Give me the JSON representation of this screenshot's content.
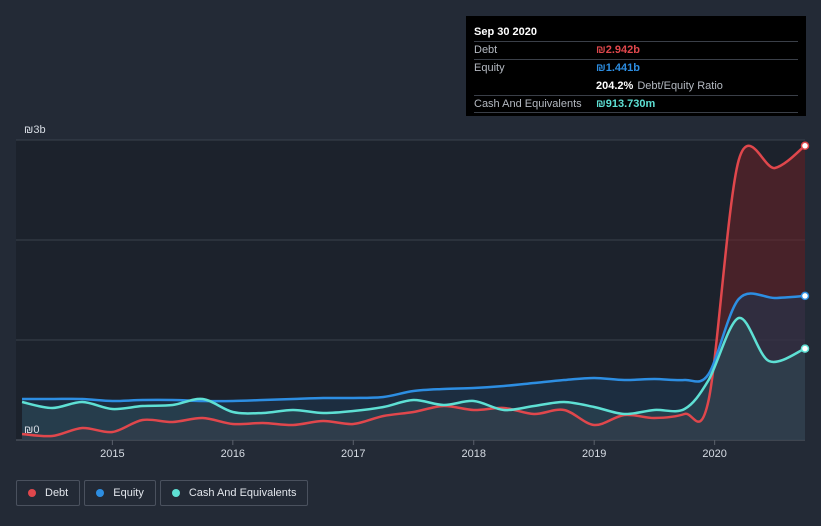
{
  "chart_data": {
    "type": "area",
    "y_labels": {
      "top": "₪3b",
      "bottom": "₪0"
    },
    "ylim": [
      0,
      3
    ],
    "xlim": [
      2014.2,
      2020.75
    ],
    "x_ticks": [
      2015,
      2016,
      2017,
      2018,
      2019,
      2020
    ],
    "x_tick_labels": [
      "2015",
      "2016",
      "2017",
      "2018",
      "2019",
      "2020"
    ],
    "y_unit": "₪b",
    "series": [
      {
        "name": "Debt",
        "color": "#e0474c",
        "fill": "#6e2228",
        "points": [
          [
            2014.25,
            0.06
          ],
          [
            2014.5,
            0.04
          ],
          [
            2014.75,
            0.12
          ],
          [
            2015.0,
            0.08
          ],
          [
            2015.25,
            0.2
          ],
          [
            2015.5,
            0.18
          ],
          [
            2015.75,
            0.22
          ],
          [
            2016.0,
            0.16
          ],
          [
            2016.25,
            0.17
          ],
          [
            2016.5,
            0.15
          ],
          [
            2016.75,
            0.19
          ],
          [
            2017.0,
            0.16
          ],
          [
            2017.25,
            0.24
          ],
          [
            2017.5,
            0.28
          ],
          [
            2017.75,
            0.34
          ],
          [
            2018.0,
            0.3
          ],
          [
            2018.25,
            0.32
          ],
          [
            2018.5,
            0.26
          ],
          [
            2018.75,
            0.3
          ],
          [
            2019.0,
            0.15
          ],
          [
            2019.25,
            0.25
          ],
          [
            2019.5,
            0.22
          ],
          [
            2019.75,
            0.26
          ],
          [
            2019.95,
            0.4
          ],
          [
            2020.2,
            2.8
          ],
          [
            2020.5,
            2.72
          ],
          [
            2020.75,
            2.942
          ]
        ]
      },
      {
        "name": "Equity",
        "color": "#2d8ee2",
        "fill": "#1d3752",
        "points": [
          [
            2014.25,
            0.41
          ],
          [
            2014.5,
            0.41
          ],
          [
            2014.75,
            0.41
          ],
          [
            2015.0,
            0.39
          ],
          [
            2015.25,
            0.4
          ],
          [
            2015.5,
            0.4
          ],
          [
            2015.75,
            0.39
          ],
          [
            2016.0,
            0.39
          ],
          [
            2016.25,
            0.4
          ],
          [
            2016.5,
            0.41
          ],
          [
            2016.75,
            0.42
          ],
          [
            2017.0,
            0.42
          ],
          [
            2017.25,
            0.43
          ],
          [
            2017.5,
            0.49
          ],
          [
            2017.75,
            0.51
          ],
          [
            2018.0,
            0.52
          ],
          [
            2018.25,
            0.54
          ],
          [
            2018.5,
            0.57
          ],
          [
            2018.75,
            0.6
          ],
          [
            2019.0,
            0.62
          ],
          [
            2019.25,
            0.6
          ],
          [
            2019.5,
            0.61
          ],
          [
            2019.75,
            0.6
          ],
          [
            2019.95,
            0.66
          ],
          [
            2020.2,
            1.41
          ],
          [
            2020.5,
            1.42
          ],
          [
            2020.75,
            1.441
          ]
        ]
      },
      {
        "name": "Cash And Equivalents",
        "color": "#5ee0d4",
        "fill": "#2f4b55",
        "points": [
          [
            2014.25,
            0.38
          ],
          [
            2014.5,
            0.32
          ],
          [
            2014.75,
            0.38
          ],
          [
            2015.0,
            0.31
          ],
          [
            2015.25,
            0.34
          ],
          [
            2015.5,
            0.35
          ],
          [
            2015.75,
            0.41
          ],
          [
            2016.0,
            0.28
          ],
          [
            2016.25,
            0.27
          ],
          [
            2016.5,
            0.3
          ],
          [
            2016.75,
            0.27
          ],
          [
            2017.0,
            0.29
          ],
          [
            2017.25,
            0.33
          ],
          [
            2017.5,
            0.4
          ],
          [
            2017.75,
            0.35
          ],
          [
            2018.0,
            0.39
          ],
          [
            2018.25,
            0.3
          ],
          [
            2018.5,
            0.34
          ],
          [
            2018.75,
            0.38
          ],
          [
            2019.0,
            0.33
          ],
          [
            2019.25,
            0.26
          ],
          [
            2019.5,
            0.3
          ],
          [
            2019.75,
            0.31
          ],
          [
            2019.95,
            0.6
          ],
          [
            2020.2,
            1.22
          ],
          [
            2020.45,
            0.79
          ],
          [
            2020.75,
            0.914
          ]
        ]
      }
    ]
  },
  "tooltip": {
    "date": "Sep 30 2020",
    "rows": [
      {
        "label": "Debt",
        "value": "₪2.942b",
        "color": "#e0474c"
      },
      {
        "label": "Equity",
        "value": "₪1.441b",
        "color": "#2d8ee2"
      },
      {
        "label": "",
        "value": "204.2%",
        "extra": "Debt/Equity Ratio",
        "color": "#ffffff"
      },
      {
        "label": "Cash And Equivalents",
        "value": "₪913.730m",
        "color": "#5ee0d4"
      }
    ]
  },
  "legend": [
    {
      "label": "Debt",
      "color": "#e0474c"
    },
    {
      "label": "Equity",
      "color": "#2d8ee2"
    },
    {
      "label": "Cash And Equivalents",
      "color": "#5ee0d4"
    }
  ]
}
